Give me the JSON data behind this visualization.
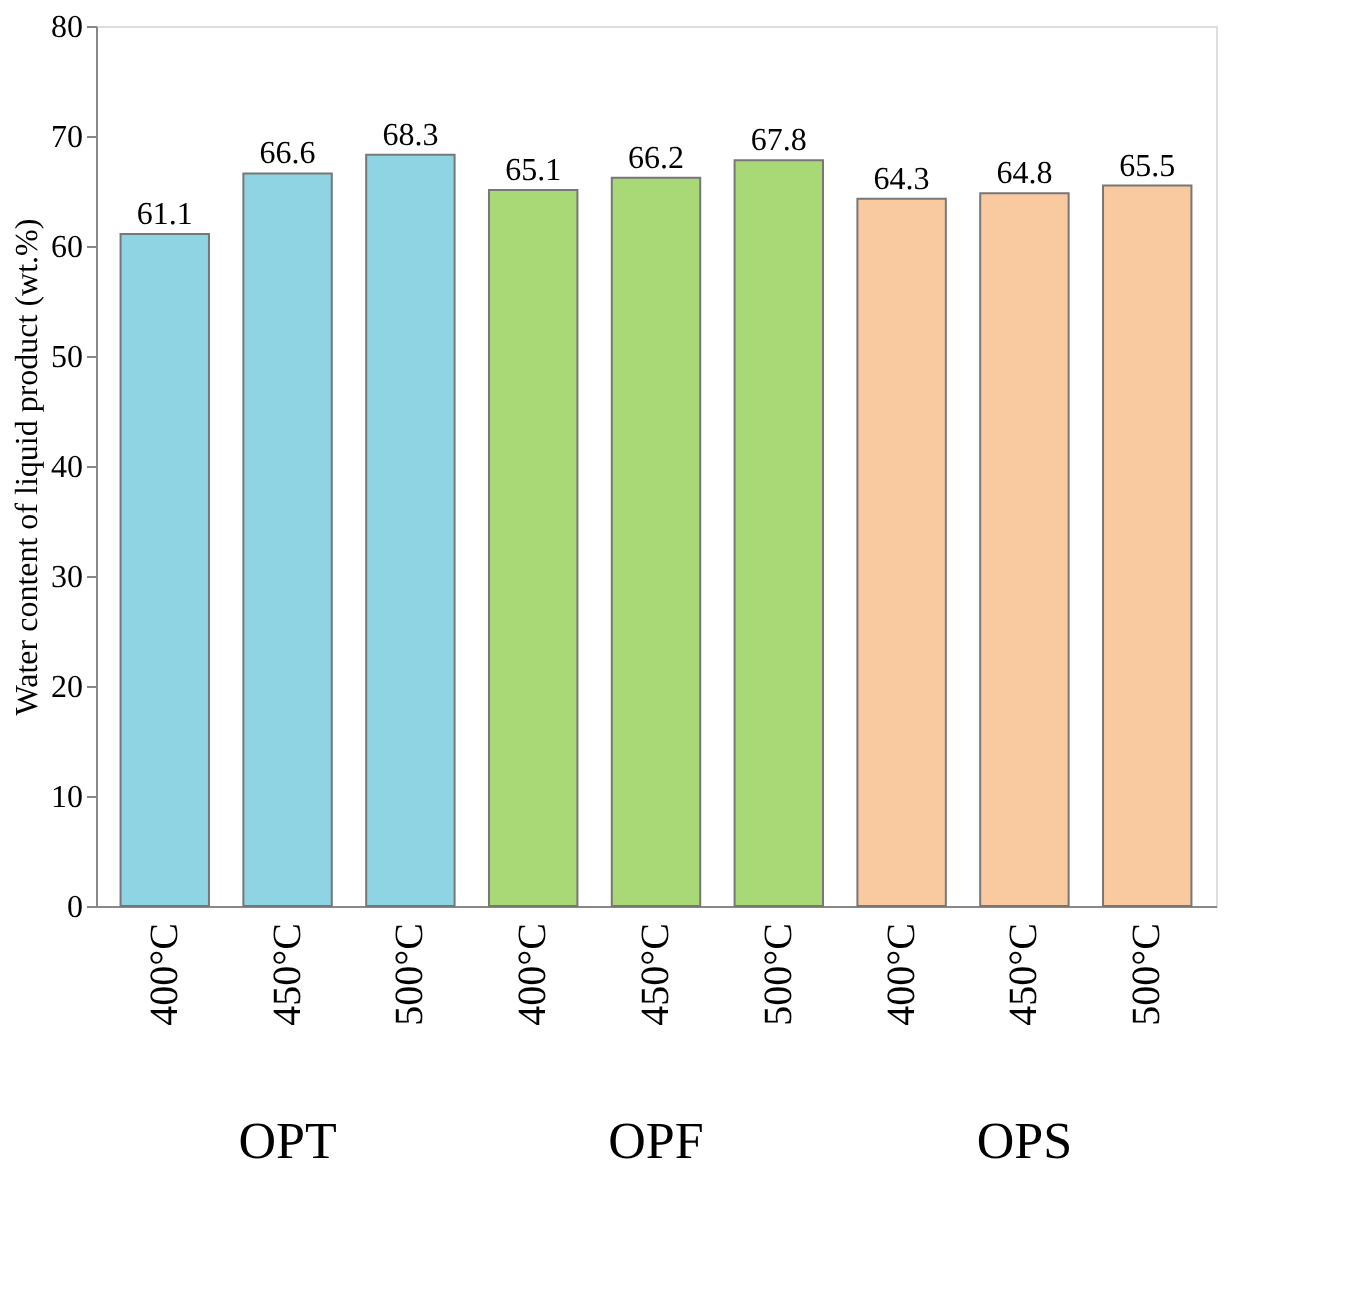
{
  "chart_data": {
    "type": "bar",
    "ylabel": "Water content of liquid product (wt.%)",
    "categories": [
      "400°C",
      "450°C",
      "500°C",
      "400°C",
      "450°C",
      "500°C",
      "400°C",
      "450°C",
      "500°C"
    ],
    "values": [
      61.1,
      66.6,
      68.3,
      65.1,
      66.2,
      67.8,
      64.3,
      64.8,
      65.5
    ],
    "colors": [
      "#8ed4e2",
      "#8ed4e2",
      "#8ed4e2",
      "#a9d877",
      "#a9d877",
      "#a9d877",
      "#f9caa0",
      "#f9caa0",
      "#f9caa0"
    ],
    "ylim": [
      0,
      80
    ],
    "yticks": [
      0,
      10,
      20,
      30,
      40,
      50,
      60,
      70,
      80
    ],
    "data_labels": true,
    "grid": false,
    "annotations": [
      "OPT",
      "OPF",
      "OPS"
    ]
  }
}
